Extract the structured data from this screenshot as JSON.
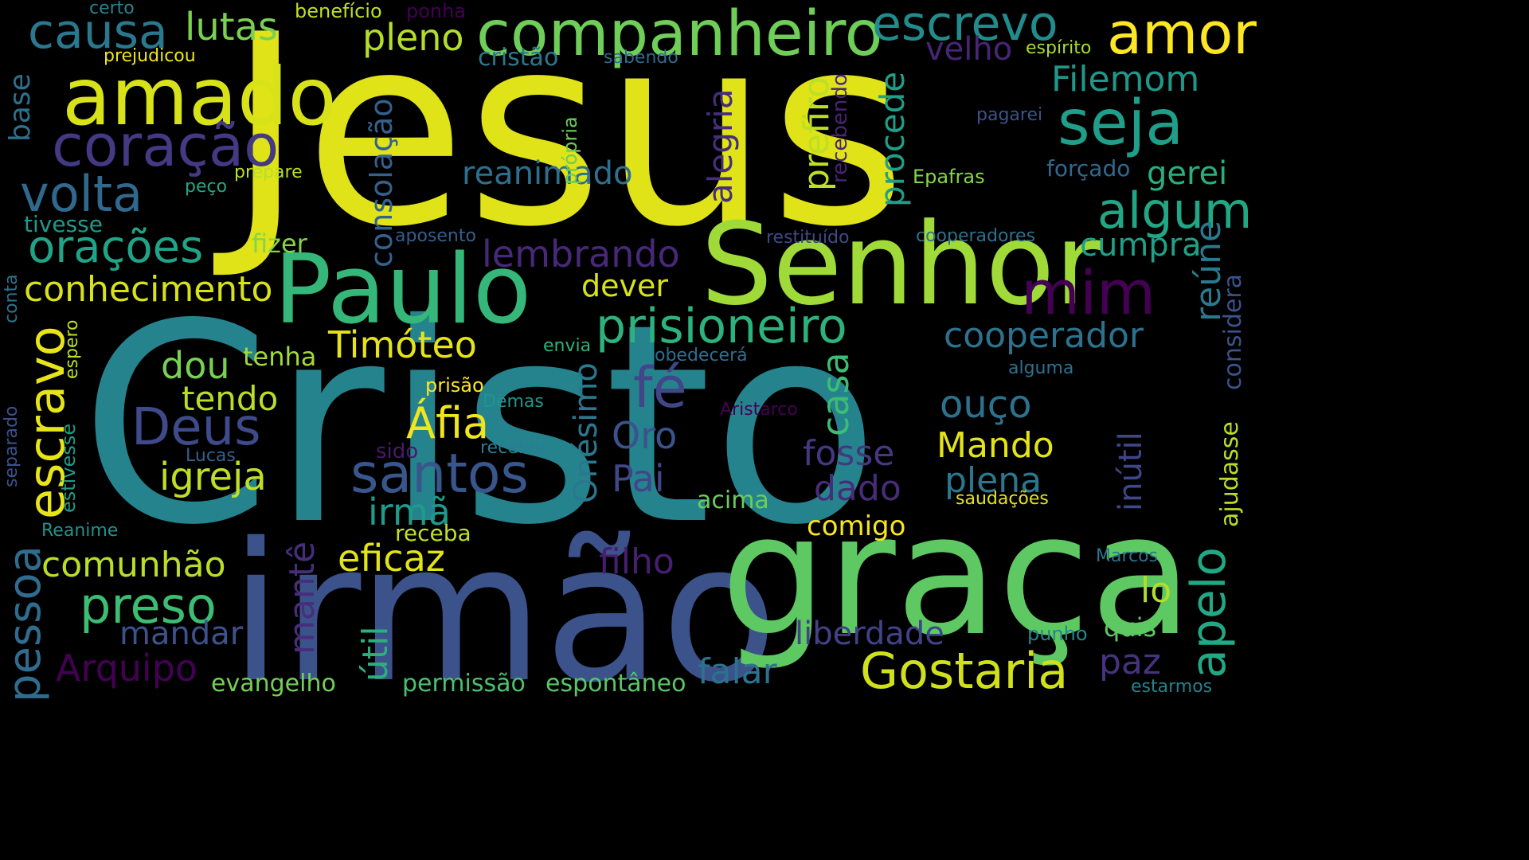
{
  "wordcloud": {
    "palette": "viridis",
    "background": "#000000",
    "words": [
      {
        "id": "jesus",
        "text": "Jesus",
        "color": "#dfe318"
      },
      {
        "id": "cristo",
        "text": "Cristo",
        "color": "#25838e"
      },
      {
        "id": "irmao",
        "text": "irmão",
        "color": "#3b528b"
      },
      {
        "id": "graca",
        "text": "graça",
        "color": "#5ec962"
      },
      {
        "id": "senhor",
        "text": "Senhor",
        "color": "#a0da39"
      },
      {
        "id": "paulo",
        "text": "Paulo",
        "color": "#35b779"
      },
      {
        "id": "amado",
        "text": "amado",
        "color": "#d8e219"
      },
      {
        "id": "companheiro",
        "text": "companheiro",
        "color": "#6ece58"
      },
      {
        "id": "amor",
        "text": "amor",
        "color": "#fde725"
      },
      {
        "id": "escrevo",
        "text": "escrevo",
        "color": "#228c8d"
      },
      {
        "id": "causa",
        "text": "causa",
        "color": "#2a788e"
      },
      {
        "id": "lutas",
        "text": "lutas",
        "color": "#7ad151"
      },
      {
        "id": "pleno",
        "text": "pleno",
        "color": "#b5de2b"
      },
      {
        "id": "coracao",
        "text": "coração",
        "color": "#443983"
      },
      {
        "id": "volta",
        "text": "volta",
        "color": "#31688e"
      },
      {
        "id": "oracoes",
        "text": "orações",
        "color": "#20a386"
      },
      {
        "id": "conhecimento",
        "text": "conhecimento",
        "color": "#d8e219"
      },
      {
        "id": "seja",
        "text": "seja",
        "color": "#1f9e89"
      },
      {
        "id": "filemom",
        "text": "Filemom",
        "color": "#1f988b"
      },
      {
        "id": "algum",
        "text": "algum",
        "color": "#22a785"
      },
      {
        "id": "gerei",
        "text": "gerei",
        "color": "#29af7f"
      },
      {
        "id": "cumpra",
        "text": "cumpra",
        "color": "#1fa187"
      },
      {
        "id": "mim",
        "text": "mim",
        "color": "#440154"
      },
      {
        "id": "prisioneiro",
        "text": "prisioneiro",
        "color": "#2db27d"
      },
      {
        "id": "cooperador",
        "text": "cooperador",
        "color": "#2c728e"
      },
      {
        "id": "reanimado",
        "text": "reanimado",
        "color": "#2d708e"
      },
      {
        "id": "lembrando",
        "text": "lembrando",
        "color": "#482878"
      },
      {
        "id": "dever",
        "text": "dever",
        "color": "#d8e219"
      },
      {
        "id": "timoteo",
        "text": "Timóteo",
        "color": "#e5e419"
      },
      {
        "id": "deus",
        "text": "Deus",
        "color": "#3e4a89"
      },
      {
        "id": "fe",
        "text": "fé",
        "color": "#404688"
      },
      {
        "id": "dou",
        "text": "dou",
        "color": "#77d153"
      },
      {
        "id": "tendo",
        "text": "tendo",
        "color": "#b8de29"
      },
      {
        "id": "tenha",
        "text": "tenha",
        "color": "#a2da37"
      },
      {
        "id": "igreja",
        "text": "igreja",
        "color": "#bddf26"
      },
      {
        "id": "afia",
        "text": "Áfia",
        "color": "#f1e51d"
      },
      {
        "id": "santos",
        "text": "santos",
        "color": "#39568c"
      },
      {
        "id": "irma",
        "text": "irmã",
        "color": "#1e9b8a"
      },
      {
        "id": "oro",
        "text": "Oro",
        "color": "#3b528b"
      },
      {
        "id": "pai",
        "text": "Pai",
        "color": "#3f4788"
      },
      {
        "id": "ouco",
        "text": "ouço",
        "color": "#2c728e"
      },
      {
        "id": "mando",
        "text": "Mando",
        "color": "#e2e418"
      },
      {
        "id": "fosse",
        "text": "fosse",
        "color": "#453781"
      },
      {
        "id": "dado",
        "text": "dado",
        "color": "#472c7a"
      },
      {
        "id": "plena",
        "text": "plena",
        "color": "#2a778e"
      },
      {
        "id": "acima",
        "text": "acima",
        "color": "#6ccd5a"
      },
      {
        "id": "comigo",
        "text": "comigo",
        "color": "#f8e621"
      },
      {
        "id": "eficaz",
        "text": "eficaz",
        "color": "#e2e418"
      },
      {
        "id": "receba",
        "text": "receba",
        "color": "#c2df23"
      },
      {
        "id": "comunhao",
        "text": "comunhão",
        "color": "#bade28"
      },
      {
        "id": "preso",
        "text": "preso",
        "color": "#3dbc74"
      },
      {
        "id": "mandar",
        "text": "mandar",
        "color": "#3b528b"
      },
      {
        "id": "filho",
        "text": "filho",
        "color": "#481f70"
      },
      {
        "id": "arquipo",
        "text": "Arquipo",
        "color": "#440154"
      },
      {
        "id": "evangelho",
        "text": "evangelho",
        "color": "#73d056"
      },
      {
        "id": "permissao",
        "text": "permissão",
        "color": "#4ac16d"
      },
      {
        "id": "espontaneo",
        "text": "espontâneo",
        "color": "#58c765"
      },
      {
        "id": "falar",
        "text": "falar",
        "color": "#2c728e"
      },
      {
        "id": "gostaria",
        "text": "Gostaria",
        "color": "#d0e11c"
      },
      {
        "id": "liberdade",
        "text": "liberdade",
        "color": "#414287"
      },
      {
        "id": "paz",
        "text": "paz",
        "color": "#46337f"
      },
      {
        "id": "lo",
        "text": "lo",
        "color": "#b2dd2d"
      },
      {
        "id": "quis",
        "text": "quis",
        "color": "#5ec962"
      },
      {
        "id": "punho",
        "text": "punho",
        "color": "#24878e"
      },
      {
        "id": "estarmos",
        "text": "estarmos",
        "color": "#26828e"
      },
      {
        "id": "marcos",
        "text": "Marcos",
        "color": "#2a768e"
      },
      {
        "id": "saudacoes",
        "text": "saudações",
        "color": "#e5e419"
      },
      {
        "id": "aristarco",
        "text": "Aristarco",
        "color": "#440154"
      },
      {
        "id": "alguma",
        "text": "alguma",
        "color": "#2d708e"
      },
      {
        "id": "obedecera",
        "text": "obedecerá",
        "color": "#2e6e8e"
      },
      {
        "id": "envia",
        "text": "envia",
        "color": "#2db27d"
      },
      {
        "id": "prisao",
        "text": "prisão",
        "color": "#fde725"
      },
      {
        "id": "demas",
        "text": "Demas",
        "color": "#1f958b"
      },
      {
        "id": "sido",
        "text": "sido",
        "color": "#481a6c"
      },
      {
        "id": "receber",
        "text": "receber",
        "color": "#287d8e"
      },
      {
        "id": "lucas",
        "text": "Lucas",
        "color": "#34608d"
      },
      {
        "id": "reanime",
        "text": "Reanime",
        "color": "#20928c"
      },
      {
        "id": "beneficio",
        "text": "benefício",
        "color": "#bddf26"
      },
      {
        "id": "ponha",
        "text": "ponha",
        "color": "#440154"
      },
      {
        "id": "certo",
        "text": "certo",
        "color": "#25848e"
      },
      {
        "id": "prejudicou",
        "text": "prejudicou",
        "color": "#f1e51d"
      },
      {
        "id": "cristao",
        "text": "cristão",
        "color": "#2a788e"
      },
      {
        "id": "sabendo",
        "text": "sabendo",
        "color": "#2f6c8e"
      },
      {
        "id": "espirito",
        "text": "espírito",
        "color": "#a8db34"
      },
      {
        "id": "velho",
        "text": "velho",
        "color": "#482576"
      },
      {
        "id": "pagarei",
        "text": "pagarei",
        "color": "#3b528b"
      },
      {
        "id": "forcado",
        "text": "forçado",
        "color": "#31688e"
      },
      {
        "id": "epafras",
        "text": "Epafras",
        "color": "#86d549"
      },
      {
        "id": "restituido",
        "text": "restituído",
        "color": "#3e4989"
      },
      {
        "id": "cooperadores",
        "text": "cooperadores",
        "color": "#2c728e"
      },
      {
        "id": "aposento",
        "text": "aposento",
        "color": "#365d8d"
      },
      {
        "id": "fizer",
        "text": "fizer",
        "color": "#84d44b"
      },
      {
        "id": "prepare",
        "text": "prepare",
        "color": "#bade28"
      },
      {
        "id": "peco",
        "text": "peço",
        "color": "#22a884"
      },
      {
        "id": "tivesse",
        "text": "tivesse",
        "color": "#1f9a8a"
      },
      {
        "id": "consolacao",
        "text": "consolação",
        "color": "#34618d"
      },
      {
        "id": "alegria",
        "text": "alegria",
        "color": "#472d7b"
      },
      {
        "id": "prefiro",
        "text": "prefiro",
        "color": "#bddf26"
      },
      {
        "id": "recebendo",
        "text": "recebendo",
        "color": "#482475"
      },
      {
        "id": "procede",
        "text": "procede",
        "color": "#1f9f88"
      },
      {
        "id": "propria",
        "text": "própria",
        "color": "#6ccd5a"
      },
      {
        "id": "base",
        "text": "base",
        "color": "#2d708e"
      },
      {
        "id": "escravo",
        "text": "escravo",
        "color": "#e7e419"
      },
      {
        "id": "pessoa",
        "text": "pessoa",
        "color": "#2f6c8e"
      },
      {
        "id": "separado",
        "text": "separado",
        "color": "#3b528b"
      },
      {
        "id": "estivesse",
        "text": "estivesse",
        "color": "#1e9c89"
      },
      {
        "id": "espero",
        "text": "espero",
        "color": "#bddf26"
      },
      {
        "id": "conta",
        "text": "conta",
        "color": "#2c728e"
      },
      {
        "id": "reune",
        "text": "reúne",
        "color": "#297a8e"
      },
      {
        "id": "considera",
        "text": "considera",
        "color": "#3b528b"
      },
      {
        "id": "ajudasse",
        "text": "ajudasse",
        "color": "#bade28"
      },
      {
        "id": "apelo",
        "text": "apelo",
        "color": "#22a884"
      },
      {
        "id": "inutil",
        "text": "inútil",
        "color": "#3f4788"
      },
      {
        "id": "onesimo",
        "text": "Onésimo",
        "color": "#2a788e"
      },
      {
        "id": "casa",
        "text": "casa",
        "color": "#3dbc74"
      },
      {
        "id": "mante",
        "text": "mantê",
        "color": "#472e7c"
      },
      {
        "id": "util",
        "text": "útil",
        "color": "#2ab07f"
      }
    ]
  }
}
